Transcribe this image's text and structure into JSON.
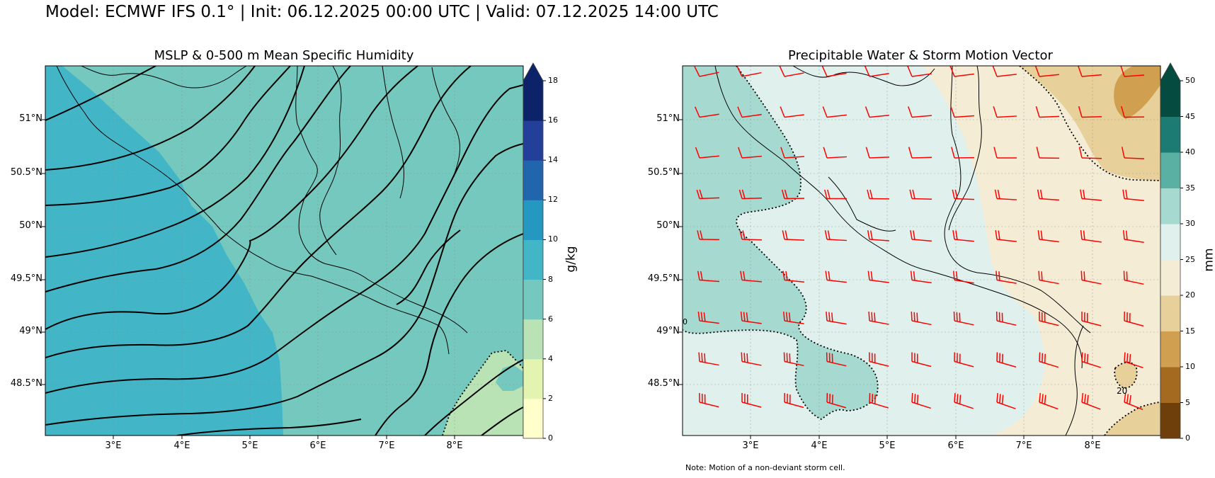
{
  "suptitle": "Model: ECMWF IFS 0.1° | Init: 06.12.2025 00:00 UTC | Valid: 07.12.2025 14:00 UTC",
  "panels": [
    {
      "title": "MSLP & 0-500 m Mean Specific Humidity",
      "lat_ticks": [
        "51°N",
        "50.5°N",
        "50°N",
        "49.5°N",
        "49°N",
        "48.5°N"
      ],
      "lon_ticks": [
        "3°E",
        "4°E",
        "5°E",
        "6°E",
        "7°E",
        "8°E"
      ],
      "colorbar": {
        "label": "g/kg",
        "ticks": [
          "0",
          "2",
          "4",
          "6",
          "8",
          "10",
          "12",
          "14",
          "16",
          "18"
        ],
        "colors": [
          "#ffffcc",
          "#e3f4b1",
          "#b9e3b5",
          "#75c8bd",
          "#42b5c7",
          "#2498c1",
          "#2166ac",
          "#233f99",
          "#0c2369"
        ]
      }
    },
    {
      "title": "Precipitable Water & Storm Motion Vector",
      "lat_ticks": [
        "51°N",
        "50.5°N",
        "50°N",
        "49.5°N",
        "49°N",
        "48.5°N"
      ],
      "lon_ticks": [
        "3°E",
        "4°E",
        "5°E",
        "6°E",
        "7°E",
        "8°E"
      ],
      "colorbar": {
        "label": "mm",
        "ticks": [
          "0",
          "5",
          "10",
          "15",
          "20",
          "25",
          "30",
          "35",
          "40",
          "45",
          "50"
        ],
        "colors": [
          "#6e3f0a",
          "#a46a1f",
          "#d0a050",
          "#e8d09a",
          "#f5ecd6",
          "#dff0ed",
          "#a6dad1",
          "#5ab0a3",
          "#1c7b72",
          "#064b40"
        ]
      },
      "contour_label": "20",
      "contour_label_small": "0",
      "note": "Note: Motion of a non-deviant storm cell."
    }
  ],
  "colors": {
    "barb": "#ff0000",
    "contour": "#000000"
  }
}
